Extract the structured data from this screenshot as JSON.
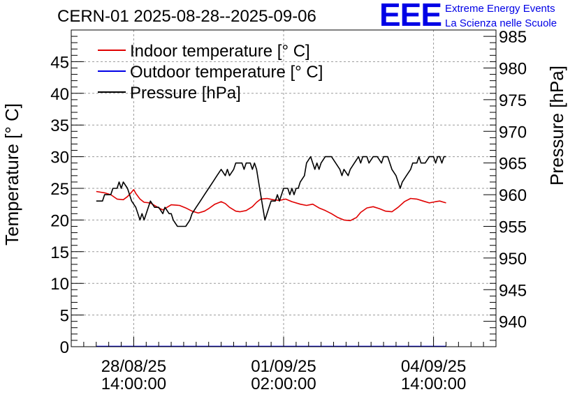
{
  "header": {
    "title": "CERN-01 2025-08-28--2025-09-06",
    "logo_text": "EEE",
    "brand_line1": "Extreme Energy Events",
    "brand_line2": "La Scienza nelle Scuole"
  },
  "colors": {
    "indoor": "#e00000",
    "outdoor": "#0000e6",
    "pressure": "#000000",
    "brand": "#0000e6",
    "grid": "#9a9a9a"
  },
  "chart_data": {
    "type": "line",
    "left_axis": {
      "label": "Temperature [° C]",
      "range": [
        0,
        50
      ],
      "ticks": [
        0,
        5,
        10,
        15,
        20,
        25,
        30,
        35,
        40,
        45
      ]
    },
    "right_axis": {
      "label": "Pressure [hPa]",
      "range": [
        936,
        986
      ],
      "ticks": [
        940,
        945,
        950,
        955,
        960,
        965,
        970,
        975,
        980,
        985
      ]
    },
    "x_axis": {
      "range_hours": [
        0,
        204
      ],
      "ticks": [
        {
          "t": 30,
          "date": "28/08/25",
          "time": "14:00:00"
        },
        {
          "t": 102,
          "date": "01/09/25",
          "time": "02:00:00"
        },
        {
          "t": 174,
          "date": "04/09/25",
          "time": "14:00:00"
        }
      ]
    },
    "grid": true,
    "legend_position": "top-left",
    "series": [
      {
        "name": "Indoor temperature [° C]",
        "axis": "left",
        "color": "#e00000",
        "points": [
          [
            12,
            24.5
          ],
          [
            16,
            24.3
          ],
          [
            19,
            24.0
          ],
          [
            22,
            23.3
          ],
          [
            25,
            23.2
          ],
          [
            27,
            23.7
          ],
          [
            29,
            24.4
          ],
          [
            30,
            24.8
          ],
          [
            31,
            24.2
          ],
          [
            33,
            23.3
          ],
          [
            35,
            22.8
          ],
          [
            38,
            22.7
          ],
          [
            42,
            21.9
          ],
          [
            44,
            21.6
          ],
          [
            46,
            22.0
          ],
          [
            48,
            22.4
          ],
          [
            52,
            22.3
          ],
          [
            55,
            21.9
          ],
          [
            58,
            21.4
          ],
          [
            61,
            21.1
          ],
          [
            64,
            21.4
          ],
          [
            66,
            21.8
          ],
          [
            69,
            22.5
          ],
          [
            72,
            22.9
          ],
          [
            74,
            22.6
          ],
          [
            76,
            22.0
          ],
          [
            79,
            21.4
          ],
          [
            81,
            21.3
          ],
          [
            84,
            21.5
          ],
          [
            87,
            22.1
          ],
          [
            89,
            22.8
          ],
          [
            91,
            23.3
          ],
          [
            94,
            23.4
          ],
          [
            97,
            23.2
          ],
          [
            100,
            23.1
          ],
          [
            103,
            23.3
          ],
          [
            106,
            22.9
          ],
          [
            110,
            22.5
          ],
          [
            113,
            22.3
          ],
          [
            116,
            22.5
          ],
          [
            119,
            21.9
          ],
          [
            122,
            21.5
          ],
          [
            125,
            21.0
          ],
          [
            128,
            20.4
          ],
          [
            131,
            20.0
          ],
          [
            134,
            19.9
          ],
          [
            137,
            20.4
          ],
          [
            139,
            21.2
          ],
          [
            142,
            21.9
          ],
          [
            145,
            22.1
          ],
          [
            148,
            21.8
          ],
          [
            151,
            21.4
          ],
          [
            154,
            21.3
          ],
          [
            157,
            22.0
          ],
          [
            160,
            22.9
          ],
          [
            163,
            23.4
          ],
          [
            166,
            23.3
          ],
          [
            169,
            23.0
          ],
          [
            172,
            22.7
          ],
          [
            175,
            22.9
          ],
          [
            177,
            23.0
          ],
          [
            180,
            22.7
          ]
        ]
      },
      {
        "name": "Outdoor temperature [° C]",
        "axis": "left",
        "color": "#0000e6",
        "points": [
          [
            12,
            0.05
          ],
          [
            180,
            0.05
          ]
        ]
      },
      {
        "name": "Pressure [hPa]",
        "axis": "right",
        "color": "#000000",
        "points": [
          [
            12,
            959
          ],
          [
            15,
            959
          ],
          [
            16,
            960
          ],
          [
            19,
            960
          ],
          [
            20,
            961
          ],
          [
            22,
            961
          ],
          [
            23,
            962
          ],
          [
            24,
            961
          ],
          [
            25,
            962
          ],
          [
            27,
            961
          ],
          [
            28,
            960
          ],
          [
            29,
            959
          ],
          [
            31,
            958
          ],
          [
            32,
            957
          ],
          [
            33,
            956
          ],
          [
            34,
            957
          ],
          [
            35,
            956
          ],
          [
            36,
            957
          ],
          [
            37,
            958
          ],
          [
            38,
            959
          ],
          [
            40,
            958
          ],
          [
            42,
            958
          ],
          [
            44,
            957
          ],
          [
            45,
            958
          ],
          [
            47,
            957
          ],
          [
            48,
            957
          ],
          [
            49,
            956
          ],
          [
            51,
            955
          ],
          [
            55,
            955
          ],
          [
            57,
            956
          ],
          [
            58,
            957
          ],
          [
            60,
            958
          ],
          [
            62,
            959
          ],
          [
            64,
            960
          ],
          [
            66,
            961
          ],
          [
            68,
            962
          ],
          [
            70,
            963
          ],
          [
            72,
            964
          ],
          [
            74,
            963
          ],
          [
            75,
            964
          ],
          [
            76,
            963
          ],
          [
            78,
            964
          ],
          [
            79,
            965
          ],
          [
            82,
            965
          ],
          [
            83,
            964
          ],
          [
            84,
            965
          ],
          [
            86,
            965
          ],
          [
            87,
            964
          ],
          [
            88,
            965
          ],
          [
            89,
            964
          ],
          [
            90,
            962
          ],
          [
            91,
            960
          ],
          [
            92,
            958
          ],
          [
            93,
            956
          ],
          [
            94,
            957
          ],
          [
            95,
            958
          ],
          [
            96,
            959
          ],
          [
            98,
            959
          ],
          [
            99,
            960
          ],
          [
            100,
            959
          ],
          [
            101,
            960
          ],
          [
            102,
            961
          ],
          [
            104,
            961
          ],
          [
            105,
            960
          ],
          [
            106,
            961
          ],
          [
            107,
            960
          ],
          [
            108,
            961
          ],
          [
            109,
            961
          ],
          [
            110,
            962
          ],
          [
            112,
            963
          ],
          [
            113,
            965
          ],
          [
            115,
            966
          ],
          [
            116,
            965
          ],
          [
            117,
            964
          ],
          [
            118,
            965
          ],
          [
            119,
            964
          ],
          [
            120,
            965
          ],
          [
            122,
            966
          ],
          [
            125,
            966
          ],
          [
            127,
            965
          ],
          [
            129,
            964
          ],
          [
            130,
            963
          ],
          [
            131,
            964
          ],
          [
            133,
            963
          ],
          [
            134,
            964
          ],
          [
            136,
            965
          ],
          [
            138,
            966
          ],
          [
            139,
            965
          ],
          [
            140,
            966
          ],
          [
            142,
            966
          ],
          [
            143,
            965
          ],
          [
            145,
            966
          ],
          [
            147,
            966
          ],
          [
            149,
            965
          ],
          [
            150,
            966
          ],
          [
            152,
            966
          ],
          [
            153,
            965
          ],
          [
            154,
            964
          ],
          [
            156,
            963
          ],
          [
            157,
            962
          ],
          [
            158,
            961
          ],
          [
            159,
            962
          ],
          [
            161,
            963
          ],
          [
            163,
            964
          ],
          [
            164,
            965
          ],
          [
            166,
            965
          ],
          [
            167,
            966
          ],
          [
            168,
            965
          ],
          [
            170,
            965
          ],
          [
            172,
            966
          ],
          [
            174,
            966
          ],
          [
            175,
            965
          ],
          [
            176,
            966
          ],
          [
            177,
            966
          ],
          [
            178,
            965
          ],
          [
            179,
            966
          ],
          [
            180,
            966
          ]
        ]
      }
    ]
  }
}
